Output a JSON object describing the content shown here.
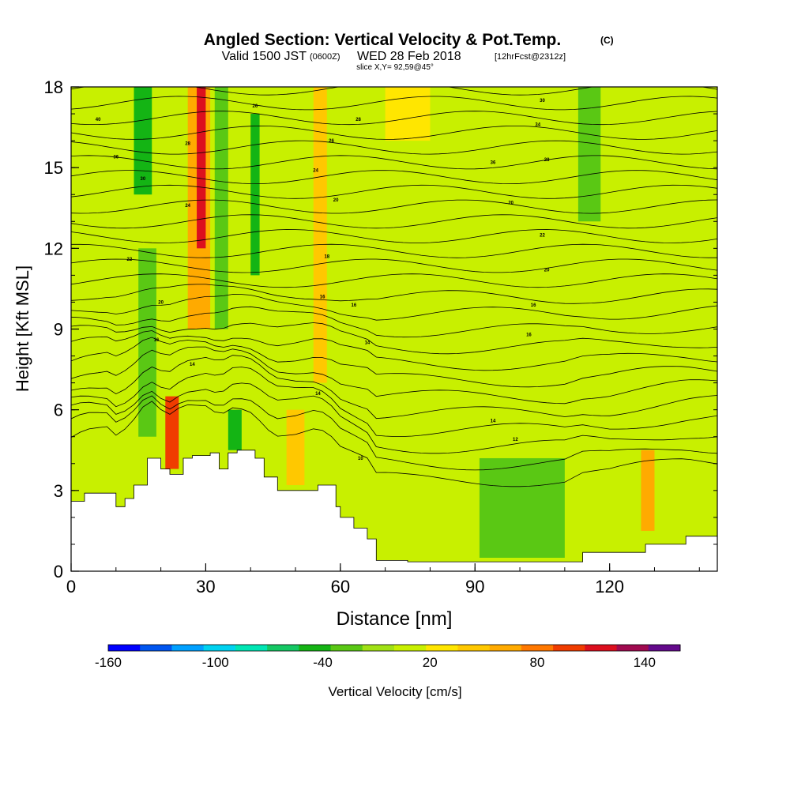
{
  "header": {
    "title": "Angled Section: Vertical Velocity & Pot.Temp.",
    "copyright": "(C)",
    "valid_prefix": "Valid 1500 JST",
    "utc": "(0600Z)",
    "valid_date": "WED 28 Feb 2018",
    "forecast": "[12hrFcst@2312z]",
    "slice": "slice X,Y= 92,59@45°"
  },
  "chart_data": {
    "type": "heatmap",
    "xlabel": "Distance [nm]",
    "ylabel": "Height [Kft MSL]",
    "xlim": [
      0,
      144
    ],
    "ylim": [
      0,
      18
    ],
    "x_ticks": [
      0,
      30,
      60,
      90,
      120
    ],
    "y_ticks": [
      0,
      3,
      6,
      9,
      12,
      15,
      18
    ],
    "colorbar": {
      "label": "Vertical Velocity [cm/s]",
      "tick_labels": [
        "-160",
        "-100",
        "-40",
        "20",
        "80",
        "140"
      ],
      "tick_values": [
        -160,
        -100,
        -40,
        20,
        80,
        140
      ],
      "range": [
        -160,
        160
      ],
      "colors": [
        "#0000ff",
        "#0055f0",
        "#00a0ff",
        "#00d2f0",
        "#00e6b4",
        "#14c864",
        "#14b414",
        "#5ac814",
        "#a0e114",
        "#c8f000",
        "#ffe600",
        "#ffc800",
        "#ffaa00",
        "#ff7800",
        "#f03c00",
        "#dc0f1e",
        "#a00a50",
        "#640a8c"
      ]
    },
    "velocity_zones": [
      {
        "x": [
          0,
          144
        ],
        "y": [
          0,
          18
        ],
        "value": 10
      },
      {
        "x": [
          14,
          18
        ],
        "y": [
          14,
          18
        ],
        "value": -40
      },
      {
        "x": [
          15,
          19
        ],
        "y": [
          5,
          12
        ],
        "value": -20
      },
      {
        "x": [
          21,
          24
        ],
        "y": [
          3.8,
          6.5
        ],
        "value": 90
      },
      {
        "x": [
          26,
          31
        ],
        "y": [
          9,
          18
        ],
        "value": 60
      },
      {
        "x": [
          28,
          30
        ],
        "y": [
          12,
          18
        ],
        "value": 110
      },
      {
        "x": [
          32,
          35
        ],
        "y": [
          9,
          18
        ],
        "value": -30
      },
      {
        "x": [
          35,
          38
        ],
        "y": [
          4.5,
          6
        ],
        "value": -50
      },
      {
        "x": [
          40,
          42
        ],
        "y": [
          11,
          17
        ],
        "value": -40
      },
      {
        "x": [
          48,
          52
        ],
        "y": [
          3.2,
          6
        ],
        "value": 40
      },
      {
        "x": [
          54,
          57
        ],
        "y": [
          7,
          18
        ],
        "value": 50
      },
      {
        "x": [
          70,
          80
        ],
        "y": [
          16,
          18
        ],
        "value": 30
      },
      {
        "x": [
          91,
          110
        ],
        "y": [
          0.5,
          4.2
        ],
        "value": -20
      },
      {
        "x": [
          113,
          118
        ],
        "y": [
          13,
          18
        ],
        "value": -30
      },
      {
        "x": [
          127,
          130
        ],
        "y": [
          1.5,
          4.5
        ],
        "value": 60
      }
    ],
    "terrain": {
      "x": [
        0,
        3,
        8,
        10,
        12,
        14,
        17,
        19,
        20,
        22,
        25,
        27,
        29,
        31,
        33,
        35,
        37,
        41,
        43,
        46,
        50,
        55,
        59,
        60,
        63,
        66,
        68,
        75,
        85,
        95,
        110,
        114,
        120,
        128,
        137,
        144
      ],
      "y": [
        2.6,
        2.9,
        2.9,
        2.4,
        2.7,
        3.2,
        4.2,
        4.2,
        3.8,
        3.6,
        4.2,
        4.3,
        4.3,
        4.4,
        3.8,
        4.4,
        4.5,
        4.2,
        3.5,
        3.0,
        3.0,
        3.2,
        2.4,
        2.0,
        1.6,
        1.2,
        0.4,
        0.35,
        0.35,
        0.35,
        0.35,
        0.7,
        0.7,
        1.0,
        1.3,
        1.3
      ]
    },
    "isentrope_labels": [
      {
        "x": 6,
        "y": 16.8,
        "text": "40"
      },
      {
        "x": 10,
        "y": 15.4,
        "text": "36"
      },
      {
        "x": 16,
        "y": 14.6,
        "text": "30"
      },
      {
        "x": 26,
        "y": 15.9,
        "text": "28"
      },
      {
        "x": 26,
        "y": 13.6,
        "text": "24"
      },
      {
        "x": 13,
        "y": 11.6,
        "text": "22"
      },
      {
        "x": 20,
        "y": 10,
        "text": "20"
      },
      {
        "x": 19,
        "y": 8.6,
        "text": "16"
      },
      {
        "x": 27,
        "y": 7.7,
        "text": "14"
      },
      {
        "x": 41,
        "y": 17.3,
        "text": "26"
      },
      {
        "x": 64,
        "y": 16.8,
        "text": "28"
      },
      {
        "x": 58,
        "y": 16,
        "text": "26"
      },
      {
        "x": 54.5,
        "y": 14.9,
        "text": "24"
      },
      {
        "x": 59,
        "y": 13.8,
        "text": "20"
      },
      {
        "x": 57,
        "y": 11.7,
        "text": "18"
      },
      {
        "x": 56,
        "y": 10.2,
        "text": "16"
      },
      {
        "x": 63,
        "y": 9.9,
        "text": "16"
      },
      {
        "x": 66,
        "y": 8.5,
        "text": "14"
      },
      {
        "x": 55,
        "y": 6.6,
        "text": "14"
      },
      {
        "x": 64.5,
        "y": 4.2,
        "text": "10"
      },
      {
        "x": 94,
        "y": 15.2,
        "text": "36"
      },
      {
        "x": 105,
        "y": 17.5,
        "text": "30"
      },
      {
        "x": 104,
        "y": 16.6,
        "text": "34"
      },
      {
        "x": 106,
        "y": 15.3,
        "text": "28"
      },
      {
        "x": 98,
        "y": 13.7,
        "text": "20"
      },
      {
        "x": 105,
        "y": 12.5,
        "text": "22"
      },
      {
        "x": 106,
        "y": 11.2,
        "text": "20"
      },
      {
        "x": 103,
        "y": 9.9,
        "text": "16"
      },
      {
        "x": 102,
        "y": 8.8,
        "text": "16"
      },
      {
        "x": 94,
        "y": 5.6,
        "text": "14"
      },
      {
        "x": 99,
        "y": 4.9,
        "text": "12"
      }
    ]
  }
}
